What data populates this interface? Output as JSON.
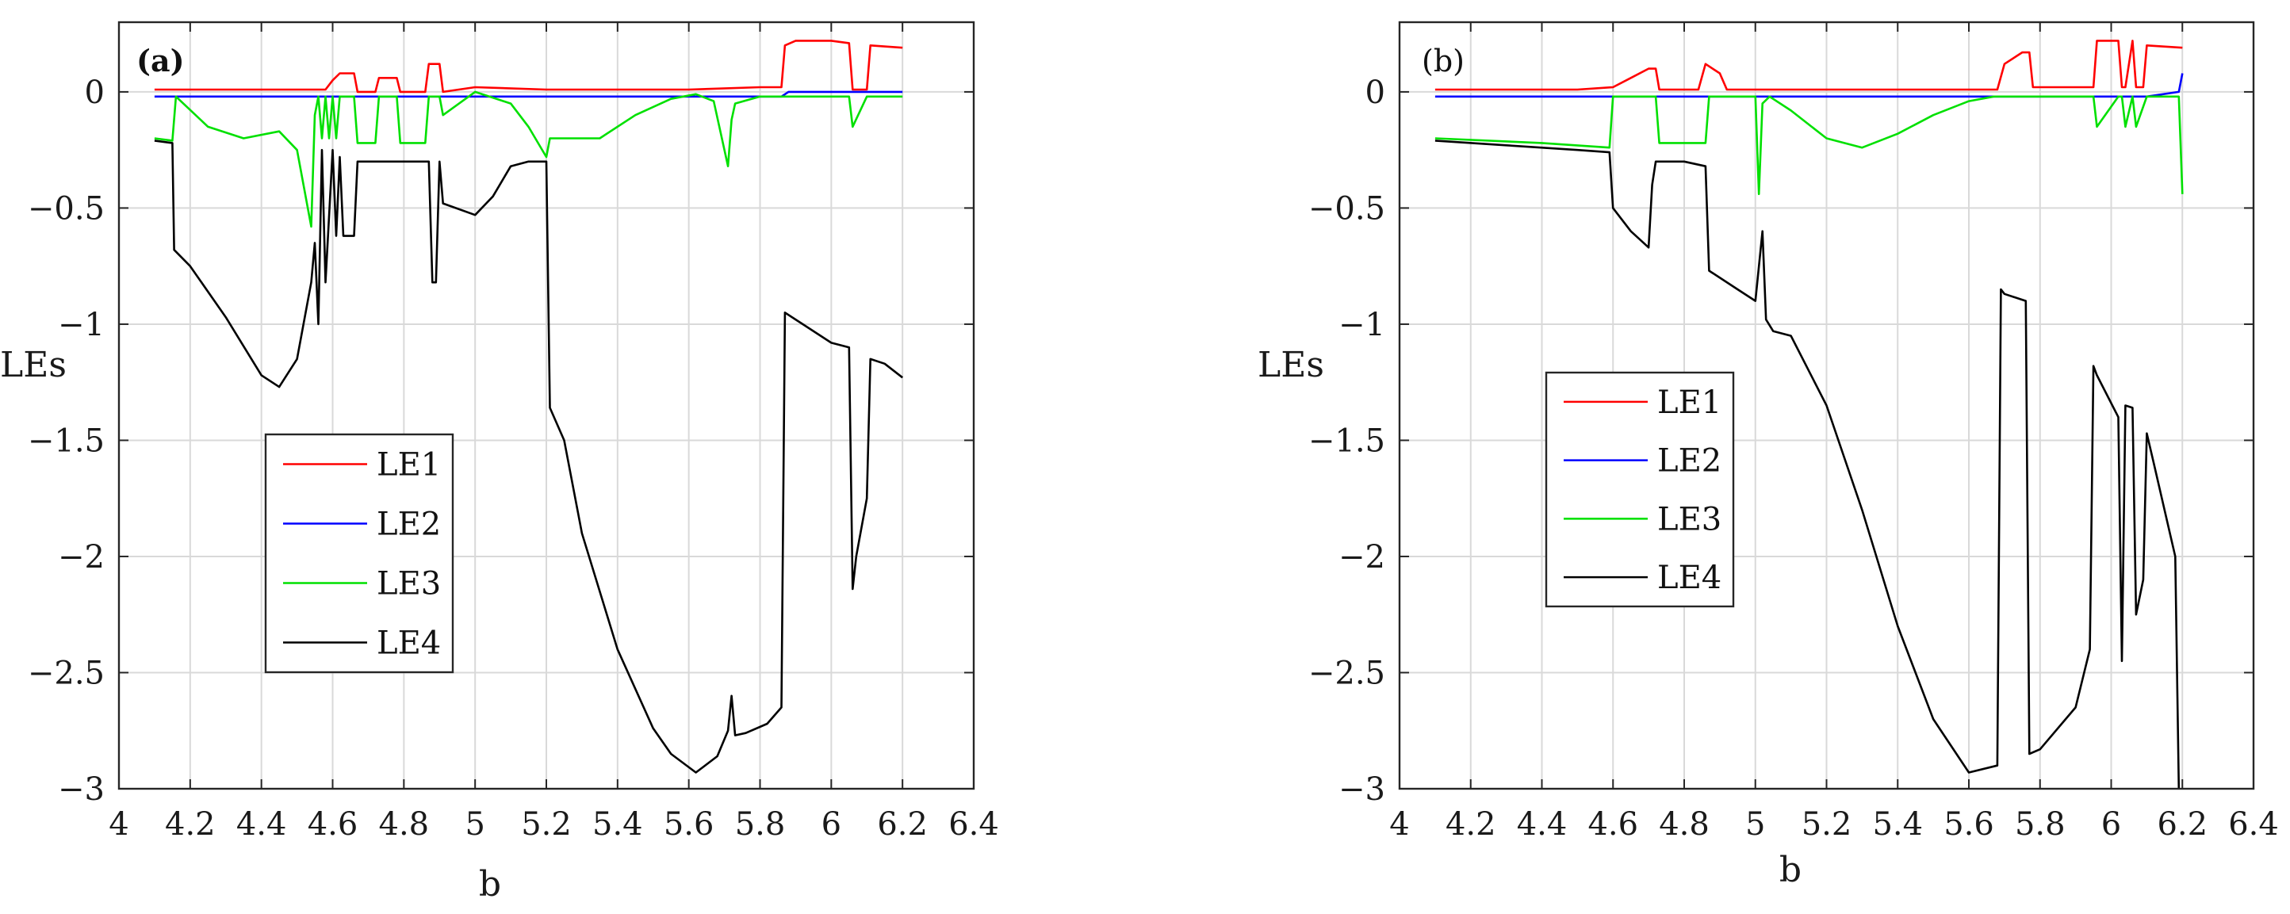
{
  "chart_data": [
    {
      "type": "line",
      "panel_label": "(a)",
      "title": "",
      "xlabel": "b",
      "ylabel": "LEs",
      "xlim": [
        4,
        6.4
      ],
      "ylim": [
        -3,
        0.3
      ],
      "xticks": [
        "4",
        "4.2",
        "4.4",
        "4.6",
        "4.8",
        "5",
        "5.2",
        "5.4",
        "5.6",
        "5.8",
        "6",
        "6.2",
        "6.4"
      ],
      "yticks": [
        "0",
        "−0.5",
        "−1",
        "−1.5",
        "−2",
        "−2.5",
        "−3"
      ],
      "grid": true,
      "legend_position": "center-left",
      "series": [
        {
          "name": "LE1",
          "color": "#ff0000",
          "x": [
            4.1,
            4.3,
            4.5,
            4.58,
            4.6,
            4.62,
            4.66,
            4.67,
            4.72,
            4.73,
            4.78,
            4.79,
            4.86,
            4.87,
            4.9,
            4.91,
            5.0,
            5.2,
            5.4,
            5.6,
            5.8,
            5.86,
            5.87,
            5.9,
            6.0,
            6.05,
            6.06,
            6.1,
            6.11,
            6.2
          ],
          "y": [
            0.01,
            0.01,
            0.01,
            0.01,
            0.05,
            0.08,
            0.08,
            0.0,
            0.0,
            0.06,
            0.06,
            0.0,
            0.0,
            0.12,
            0.12,
            0.0,
            0.02,
            0.01,
            0.01,
            0.01,
            0.02,
            0.02,
            0.2,
            0.22,
            0.22,
            0.21,
            0.01,
            0.01,
            0.2,
            0.19
          ]
        },
        {
          "name": "LE2",
          "color": "#0000ff",
          "x": [
            4.1,
            4.5,
            4.9,
            5.3,
            5.7,
            5.86,
            5.88,
            6.0,
            6.2
          ],
          "y": [
            -0.02,
            -0.02,
            -0.02,
            -0.02,
            -0.02,
            -0.02,
            0.0,
            0.0,
            0.0
          ]
        },
        {
          "name": "LE3",
          "color": "#00e000",
          "x": [
            4.1,
            4.15,
            4.16,
            4.25,
            4.35,
            4.45,
            4.5,
            4.54,
            4.55,
            4.56,
            4.57,
            4.58,
            4.59,
            4.6,
            4.61,
            4.62,
            4.66,
            4.67,
            4.72,
            4.73,
            4.78,
            4.79,
            4.86,
            4.87,
            4.9,
            4.91,
            5.0,
            5.1,
            5.15,
            5.2,
            5.21,
            5.25,
            5.35,
            5.45,
            5.55,
            5.62,
            5.67,
            5.71,
            5.72,
            5.73,
            5.8,
            5.86,
            5.87,
            6.0,
            6.05,
            6.06,
            6.1,
            6.11,
            6.2
          ],
          "y": [
            -0.2,
            -0.21,
            -0.02,
            -0.15,
            -0.2,
            -0.17,
            -0.25,
            -0.58,
            -0.1,
            -0.02,
            -0.2,
            -0.02,
            -0.2,
            -0.02,
            -0.2,
            -0.02,
            -0.02,
            -0.22,
            -0.22,
            -0.02,
            -0.02,
            -0.22,
            -0.22,
            -0.02,
            -0.02,
            -0.1,
            0.0,
            -0.05,
            -0.15,
            -0.28,
            -0.2,
            -0.2,
            -0.2,
            -0.1,
            -0.03,
            -0.01,
            -0.04,
            -0.32,
            -0.12,
            -0.05,
            -0.02,
            -0.02,
            -0.02,
            -0.02,
            -0.02,
            -0.15,
            -0.02,
            -0.02,
            -0.02
          ]
        },
        {
          "name": "LE4",
          "color": "#000000",
          "x": [
            4.1,
            4.15,
            4.155,
            4.2,
            4.3,
            4.4,
            4.45,
            4.5,
            4.54,
            4.55,
            4.56,
            4.57,
            4.58,
            4.6,
            4.61,
            4.62,
            4.63,
            4.66,
            4.67,
            4.72,
            4.8,
            4.87,
            4.88,
            4.89,
            4.9,
            4.91,
            5.0,
            5.05,
            5.1,
            5.15,
            5.2,
            5.21,
            5.25,
            5.3,
            5.4,
            5.5,
            5.55,
            5.62,
            5.68,
            5.71,
            5.72,
            5.73,
            5.76,
            5.82,
            5.86,
            5.87,
            5.9,
            6.0,
            6.05,
            6.06,
            6.07,
            6.1,
            6.11,
            6.15,
            6.2
          ],
          "y": [
            -0.21,
            -0.22,
            -0.68,
            -0.75,
            -0.97,
            -1.22,
            -1.27,
            -1.15,
            -0.82,
            -0.65,
            -1.0,
            -0.25,
            -0.82,
            -0.25,
            -0.62,
            -0.28,
            -0.62,
            -0.62,
            -0.3,
            -0.3,
            -0.3,
            -0.3,
            -0.82,
            -0.82,
            -0.3,
            -0.48,
            -0.53,
            -0.45,
            -0.32,
            -0.3,
            -0.3,
            -1.36,
            -1.5,
            -1.9,
            -2.4,
            -2.74,
            -2.85,
            -2.93,
            -2.86,
            -2.75,
            -2.6,
            -2.77,
            -2.76,
            -2.72,
            -2.65,
            -0.95,
            -0.98,
            -1.08,
            -1.1,
            -2.14,
            -2.0,
            -1.75,
            -1.15,
            -1.17,
            -1.23
          ]
        }
      ]
    },
    {
      "type": "line",
      "panel_label": "(b)",
      "title": "",
      "xlabel": "b",
      "ylabel": "LEs",
      "xlim": [
        4,
        6.4
      ],
      "ylim": [
        -3,
        0.3
      ],
      "xticks": [
        "4",
        "4.2",
        "4.4",
        "4.6",
        "4.8",
        "5",
        "5.2",
        "5.4",
        "5.6",
        "5.8",
        "6",
        "6.2",
        "6.4"
      ],
      "yticks": [
        "0",
        "−0.5",
        "−1",
        "−1.5",
        "−2",
        "−2.5",
        "−3"
      ],
      "grid": true,
      "legend_position": "center-left",
      "series": [
        {
          "name": "LE1",
          "color": "#ff0000",
          "x": [
            4.1,
            4.3,
            4.5,
            4.6,
            4.65,
            4.7,
            4.72,
            4.73,
            4.84,
            4.86,
            4.9,
            4.92,
            5.0,
            5.2,
            5.4,
            5.6,
            5.68,
            5.7,
            5.75,
            5.77,
            5.78,
            5.95,
            5.96,
            6.02,
            6.03,
            6.04,
            6.06,
            6.07,
            6.09,
            6.1,
            6.2
          ],
          "y": [
            0.01,
            0.01,
            0.01,
            0.02,
            0.06,
            0.1,
            0.1,
            0.01,
            0.01,
            0.12,
            0.08,
            0.01,
            0.01,
            0.01,
            0.01,
            0.01,
            0.01,
            0.12,
            0.17,
            0.17,
            0.02,
            0.02,
            0.22,
            0.22,
            0.02,
            0.02,
            0.22,
            0.02,
            0.02,
            0.2,
            0.19
          ]
        },
        {
          "name": "LE2",
          "color": "#0000ff",
          "x": [
            4.1,
            4.5,
            4.9,
            5.3,
            5.7,
            5.9,
            6.1,
            6.19,
            6.2
          ],
          "y": [
            -0.02,
            -0.02,
            -0.02,
            -0.02,
            -0.02,
            -0.02,
            -0.02,
            0.0,
            0.08
          ]
        },
        {
          "name": "LE3",
          "color": "#00e000",
          "x": [
            4.1,
            4.4,
            4.59,
            4.6,
            4.72,
            4.73,
            4.86,
            4.87,
            4.9,
            5.0,
            5.01,
            5.02,
            5.04,
            5.1,
            5.2,
            5.3,
            5.4,
            5.5,
            5.6,
            5.67,
            5.7,
            5.8,
            5.95,
            5.96,
            6.02,
            6.03,
            6.04,
            6.06,
            6.07,
            6.1,
            6.11,
            6.19,
            6.2
          ],
          "y": [
            -0.2,
            -0.22,
            -0.24,
            -0.02,
            -0.02,
            -0.22,
            -0.22,
            -0.02,
            -0.02,
            -0.02,
            -0.44,
            -0.05,
            -0.02,
            -0.08,
            -0.2,
            -0.24,
            -0.18,
            -0.1,
            -0.04,
            -0.02,
            -0.02,
            -0.02,
            -0.02,
            -0.15,
            -0.02,
            -0.02,
            -0.15,
            -0.02,
            -0.15,
            -0.02,
            -0.02,
            -0.02,
            -0.44
          ]
        },
        {
          "name": "LE4",
          "color": "#000000",
          "x": [
            4.1,
            4.3,
            4.5,
            4.59,
            4.6,
            4.65,
            4.7,
            4.71,
            4.72,
            4.8,
            4.86,
            4.87,
            4.95,
            5.0,
            5.02,
            5.03,
            5.05,
            5.1,
            5.2,
            5.3,
            5.4,
            5.5,
            5.6,
            5.68,
            5.69,
            5.7,
            5.76,
            5.77,
            5.8,
            5.9,
            5.94,
            5.95,
            5.96,
            6.02,
            6.03,
            6.04,
            6.06,
            6.07,
            6.09,
            6.1,
            6.12,
            6.15,
            6.18,
            6.19
          ],
          "y": [
            -0.21,
            -0.23,
            -0.25,
            -0.26,
            -0.5,
            -0.6,
            -0.67,
            -0.4,
            -0.3,
            -0.3,
            -0.32,
            -0.77,
            -0.85,
            -0.9,
            -0.6,
            -0.98,
            -1.03,
            -1.05,
            -1.35,
            -1.8,
            -2.3,
            -2.7,
            -2.93,
            -2.9,
            -0.85,
            -0.87,
            -0.9,
            -2.85,
            -2.83,
            -2.65,
            -2.4,
            -1.18,
            -1.22,
            -1.4,
            -2.45,
            -1.35,
            -1.36,
            -2.25,
            -2.1,
            -1.47,
            -1.6,
            -1.8,
            -2.0,
            -3.0
          ]
        }
      ]
    }
  ]
}
